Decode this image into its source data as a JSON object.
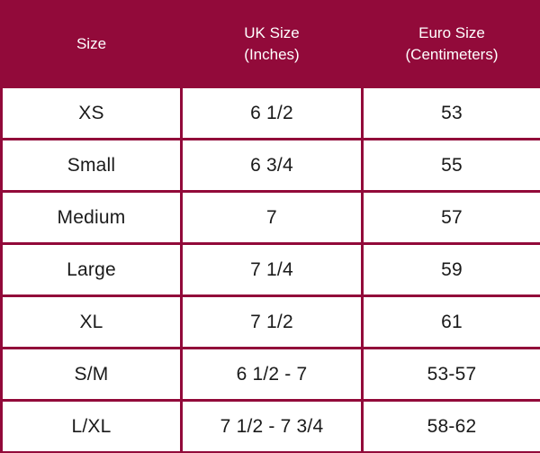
{
  "table": {
    "headers": [
      "Size",
      "UK Size\n(Inches)",
      "Euro Size\n(Centimeters)"
    ],
    "rows": [
      [
        "XS",
        "6 1/2",
        "53"
      ],
      [
        "Small",
        "6 3/4",
        "55"
      ],
      [
        "Medium",
        "7",
        "57"
      ],
      [
        "Large",
        "7 1/4",
        "59"
      ],
      [
        "XL",
        "7 1/2",
        "61"
      ],
      [
        "S/M",
        "6 1/2 - 7",
        "53-57"
      ],
      [
        "L/XL",
        "7 1/2 - 7 3/4",
        "58-62"
      ]
    ]
  },
  "colors": {
    "header_background": "#920a3a",
    "border": "#920a3a",
    "cell_background": "#ffffff",
    "header_text": "#ffffff",
    "cell_text": "#1a1a1a"
  }
}
